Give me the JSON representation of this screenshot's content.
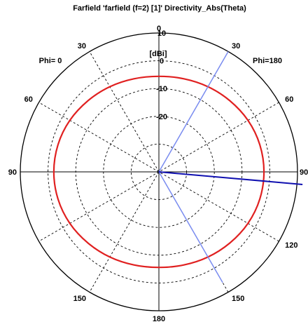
{
  "chart_data": {
    "type": "polar-line",
    "title": "Farfield 'farfield (f=2) [1]' Directivity_Abs(Theta)",
    "unit_label": "[dBi]",
    "phi_labels": {
      "left": "Phi= 0",
      "right": "Phi=180"
    },
    "theta_labels": [
      {
        "text": "0",
        "angle": 0
      },
      {
        "text": "30",
        "angle": -30
      },
      {
        "text": "30",
        "angle": 30
      },
      {
        "text": "60",
        "angle": -60
      },
      {
        "text": "60",
        "angle": 60
      },
      {
        "text": "90",
        "angle": -90
      },
      {
        "text": "90",
        "angle": 90
      },
      {
        "text": "120",
        "angle": 120
      },
      {
        "text": "150",
        "angle": -150
      },
      {
        "text": "150",
        "angle": 150
      },
      {
        "text": "180",
        "angle": 180
      }
    ],
    "radial_ticks": [
      {
        "value": 10,
        "text": "10"
      },
      {
        "value": 0,
        "text": "0"
      },
      {
        "value": -10,
        "text": "-10"
      },
      {
        "value": -20,
        "text": "-20"
      }
    ],
    "radial_range": [
      -40,
      10
    ],
    "grid": true,
    "series": [
      {
        "color": "#e02020",
        "theta_deg": [
          0,
          15,
          30,
          45,
          60,
          75,
          90,
          105,
          120,
          135,
          150,
          165,
          180,
          195,
          210,
          225,
          240,
          255,
          270,
          285,
          300,
          315,
          330,
          345
        ],
        "values": [
          -5.6,
          -5.3,
          -4.6,
          -3.8,
          -2.9,
          -2.3,
          -2.1,
          -2.3,
          -2.9,
          -3.8,
          -4.6,
          -5.3,
          -5.6,
          -5.3,
          -4.6,
          -3.8,
          -2.9,
          -2.3,
          -2.1,
          -2.3,
          -2.9,
          -3.8,
          -4.6,
          -5.3
        ]
      }
    ],
    "markers": [
      {
        "color": "#7a8cf0",
        "angle": 30,
        "value": 10
      },
      {
        "color": "#7a8cf0",
        "angle": 150,
        "value": 6
      },
      {
        "color": "#1010b0",
        "angle": 95,
        "value": 12
      }
    ],
    "colors": {
      "grid": "#000000",
      "trace": "#e02020",
      "beam": "#7a8cf0",
      "main_lobe": "#1010b0"
    }
  }
}
